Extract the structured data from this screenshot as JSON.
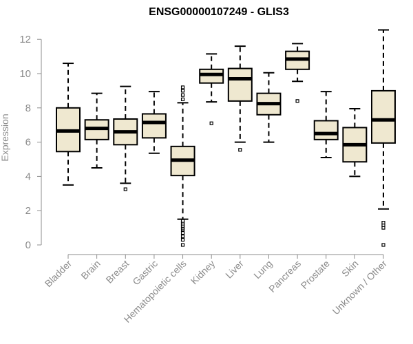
{
  "chart_data": {
    "type": "boxplot",
    "title": "ENSG00000107249 - GLIS3",
    "ylabel": "Expression",
    "xlabel": "",
    "ylim": [
      0,
      12.5
    ],
    "yticks": [
      0,
      2,
      4,
      6,
      8,
      10,
      12
    ],
    "grid": false,
    "colors": {
      "box_fill": "#efe8d0",
      "box_stroke": "#000000",
      "axis": "#8c8c8c"
    },
    "categories": [
      "Bladder",
      "Brain",
      "Breast",
      "Gastric",
      "Hematopoietic cells",
      "Kidney",
      "Liver",
      "Lung",
      "Pancreas",
      "Prostate",
      "Skin",
      "Unknown / Other"
    ],
    "boxes": [
      {
        "category": "Bladder",
        "whisker_low": 3.5,
        "q1": 5.45,
        "median": 6.65,
        "q3": 8.0,
        "whisker_high": 10.6,
        "outliers": []
      },
      {
        "category": "Brain",
        "whisker_low": 4.5,
        "q1": 6.15,
        "median": 6.8,
        "q3": 7.3,
        "whisker_high": 8.85,
        "outliers": []
      },
      {
        "category": "Breast",
        "whisker_low": 3.6,
        "q1": 5.85,
        "median": 6.6,
        "q3": 7.35,
        "whisker_high": 9.25,
        "outliers": [
          3.25
        ]
      },
      {
        "category": "Gastric",
        "whisker_low": 5.35,
        "q1": 6.25,
        "median": 7.15,
        "q3": 7.65,
        "whisker_high": 8.95,
        "outliers": []
      },
      {
        "category": "Hematopoietic cells",
        "whisker_low": 1.5,
        "q1": 4.05,
        "median": 4.95,
        "q3": 5.75,
        "whisker_high": 8.3,
        "outliers": [
          0,
          0.3,
          0.5,
          0.7,
          0.9,
          1.0,
          1.1,
          1.2,
          1.3,
          1.4,
          8.5,
          8.75,
          9.0,
          9.2
        ]
      },
      {
        "category": "Kidney",
        "whisker_low": 8.35,
        "q1": 9.45,
        "median": 9.95,
        "q3": 10.25,
        "whisker_high": 11.15,
        "outliers": [
          7.1
        ]
      },
      {
        "category": "Liver",
        "whisker_low": 6.0,
        "q1": 8.4,
        "median": 9.7,
        "q3": 10.3,
        "whisker_high": 11.6,
        "outliers": [
          5.55
        ]
      },
      {
        "category": "Lung",
        "whisker_low": 6.0,
        "q1": 7.6,
        "median": 8.25,
        "q3": 8.85,
        "whisker_high": 10.05,
        "outliers": []
      },
      {
        "category": "Pancreas",
        "whisker_low": 9.55,
        "q1": 10.25,
        "median": 10.85,
        "q3": 11.3,
        "whisker_high": 11.75,
        "outliers": [
          8.4
        ]
      },
      {
        "category": "Prostate",
        "whisker_low": 5.1,
        "q1": 6.15,
        "median": 6.5,
        "q3": 7.25,
        "whisker_high": 8.95,
        "outliers": []
      },
      {
        "category": "Skin",
        "whisker_low": 4.0,
        "q1": 4.85,
        "median": 5.85,
        "q3": 6.85,
        "whisker_high": 7.95,
        "outliers": []
      },
      {
        "category": "Unknown / Other",
        "whisker_low": 2.1,
        "q1": 5.95,
        "median": 7.3,
        "q3": 9.0,
        "whisker_high": 12.55,
        "outliers": [
          0,
          1.0,
          1.15,
          1.3
        ]
      }
    ]
  }
}
